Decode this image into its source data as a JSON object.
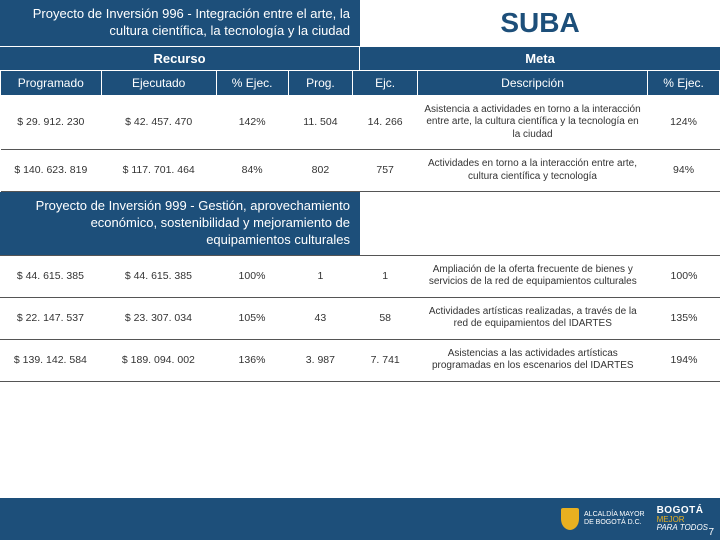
{
  "header": {
    "project996": "Proyecto de Inversión 996 - Integración entre el arte, la cultura científica, la tecnología y la ciudad",
    "suba": "SUBA",
    "project999": "Proyecto de Inversión 999 - Gestión, aprovechamiento económico, sostenibilidad y mejoramiento de equipamientos culturales"
  },
  "group_headers": {
    "recurso": "Recurso",
    "meta": "Meta"
  },
  "columns": {
    "programado": "Programado",
    "ejecutado": "Ejecutado",
    "pct_ejec": "% Ejec.",
    "prog": "Prog.",
    "ejc": "Ejc.",
    "descripcion": "Descripción",
    "pct_ejec2": "% Ejec."
  },
  "rows996": [
    {
      "programado": "$ 29. 912. 230",
      "ejecutado": "$ 42. 457. 470",
      "pct": "142%",
      "prog": "11. 504",
      "ejc": "14. 266",
      "desc": "Asistencia a actividades en torno a la interacción entre arte, la cultura científica y la tecnología en la ciudad",
      "pct2": "124%"
    },
    {
      "programado": "$ 140. 623. 819",
      "ejecutado": "$ 117. 701. 464",
      "pct": "84%",
      "prog": "802",
      "ejc": "757",
      "desc": "Actividades en torno a la interacción entre arte, cultura científica y tecnología",
      "pct2": "94%"
    }
  ],
  "rows999": [
    {
      "programado": "$ 44. 615. 385",
      "ejecutado": "$ 44. 615. 385",
      "pct": "100%",
      "prog": "1",
      "ejc": "1",
      "desc": "Ampliación de la oferta frecuente de bienes y servicios de la red de equipamientos culturales",
      "pct2": "100%"
    },
    {
      "programado": "$ 22. 147. 537",
      "ejecutado": "$ 23. 307. 034",
      "pct": "105%",
      "prog": "43",
      "ejc": "58",
      "desc": "Actividades artísticas realizadas, a través de la red de equipamientos del IDARTES",
      "pct2": "135%"
    },
    {
      "programado": "$ 139. 142. 584",
      "ejecutado": "$ 189. 094. 002",
      "pct": "136%",
      "prog": "3. 987",
      "ejc": "7. 741",
      "desc": "Asistencias a las actividades artísticas programadas en los escenarios del IDARTES",
      "pct2": "194%"
    }
  ],
  "footer": {
    "alcaldia1": "ALCALDÍA MAYOR",
    "alcaldia2": "DE BOGOTÁ D.C.",
    "bogota1": "BOGOTÁ",
    "bogota2": "MEJOR",
    "bogota3": "PARA TODOS",
    "page": "7"
  },
  "colors": {
    "primary": "#1d4f7a",
    "accent": "#e8b020",
    "text": "#333333",
    "border": "#555555"
  }
}
